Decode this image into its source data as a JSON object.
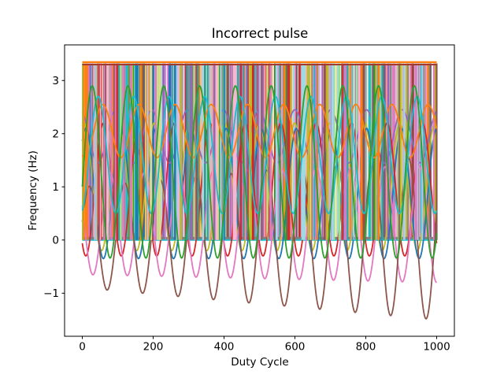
{
  "window": {
    "background": "#ffffff"
  },
  "chart_data": {
    "type": "line",
    "title": "Incorrect pulse",
    "xlabel": "Duty Cycle",
    "ylabel": "Frequency (Hz)",
    "x_range": [
      0,
      1000
    ],
    "xlim": [
      -50,
      1050
    ],
    "ylim": [
      -1.81,
      3.67
    ],
    "grid": false,
    "legend": "none",
    "xticks": [
      {
        "v": 0,
        "label": "0"
      },
      {
        "v": 200,
        "label": "200"
      },
      {
        "v": 400,
        "label": "400"
      },
      {
        "v": 600,
        "label": "600"
      },
      {
        "v": 800,
        "label": "800"
      },
      {
        "v": 1000,
        "label": "1000"
      }
    ],
    "yticks": [
      {
        "v": -1,
        "label": "−1"
      },
      {
        "v": 0,
        "label": "0"
      },
      {
        "v": 1,
        "label": "1"
      },
      {
        "v": 2,
        "label": "2"
      },
      {
        "v": 3,
        "label": "3"
      }
    ],
    "pulse_band": {
      "description": "dense square-pulse trains rendered as vertical edges between low and high",
      "low": 0,
      "high": 3.32,
      "x_start": 0,
      "x_end": 1000,
      "seed": 1337,
      "back_count": 520,
      "front_count": 160,
      "min_width": 1.1,
      "max_width": 3.2,
      "end_edge_color": "#8c564b",
      "colors": [
        "#1f77b4",
        "#ff7f0e",
        "#2ca02c",
        "#d62728",
        "#9467bd",
        "#8c564b",
        "#e377c2",
        "#7f7f7f",
        "#bcbd22",
        "#17becf",
        "#aec7e8",
        "#98df8a",
        "#c5b0d5",
        "#ff9896",
        "#da70d6",
        "#c49c94",
        "#f7b6d2",
        "#9edae5",
        "#dbdb8d",
        "#20a8b0"
      ]
    },
    "baselines": {
      "bottom": [
        {
          "y": 0.035,
          "color": "#7f7f7f",
          "w": 3
        },
        {
          "y": 0.0,
          "color": "#17becf",
          "w": 2
        }
      ],
      "top": [
        {
          "y": 3.3,
          "color": "#a33a30",
          "w": 2
        },
        {
          "y": 3.345,
          "color": "#ff7f0e",
          "w": 2.4
        }
      ]
    },
    "series": [
      {
        "name": "purple-wave",
        "color": "#9467bd",
        "center": 1.95,
        "amp_start": 0.5,
        "amp_end": 0.5,
        "period": 101,
        "peak_x": 95,
        "layer": "back"
      },
      {
        "name": "olive-wave",
        "color": "#bcbd22",
        "center": 1.0,
        "amp_start": 1.2,
        "amp_end": 1.2,
        "period": 99,
        "peak_x": 5,
        "layer": "back"
      },
      {
        "name": "blue-wave",
        "color": "#1f77b4",
        "center": 0.875,
        "amp_start": 1.225,
        "amp_end": 1.225,
        "period": 99,
        "peak_x": 10,
        "layer": "back"
      },
      {
        "name": "red-wave",
        "color": "#d62728",
        "center": 0.95,
        "amp_start": 1.25,
        "amp_end": 1.25,
        "period": 100,
        "peak_x": 60,
        "layer": "back"
      },
      {
        "name": "pink-wave",
        "color": "#e377c2",
        "center": 0.3,
        "amp_start": 0.95,
        "amp_end": 1.1,
        "period": 97,
        "peak_x": 78.5,
        "layer": "back"
      },
      {
        "name": "brown-wave",
        "color": "#8c564b",
        "center": 0.05,
        "amp_start": 0.95,
        "amp_end": 1.55,
        "period": 100,
        "peak_x": 20,
        "layer": "back"
      },
      {
        "name": "orange-wave",
        "color": "#ff7f0e",
        "center": 2.05,
        "amp_start": 0.5,
        "amp_end": 0.5,
        "period": 102,
        "peak_x": 58,
        "layer": "front"
      },
      {
        "name": "cyan-wave",
        "color": "#17becf",
        "center": 1.6,
        "amp_start": 1.1,
        "amp_end": 1.1,
        "period": 100,
        "peak_x": 45,
        "layer": "front"
      },
      {
        "name": "green-wave",
        "color": "#2ca02c",
        "center": 1.28,
        "amp_start": 1.62,
        "amp_end": 1.62,
        "period": 101,
        "peak_x": 28,
        "layer": "front"
      }
    ],
    "sample_step": 2,
    "axis_color": "#000000",
    "tick_font_px": 13.5
  }
}
